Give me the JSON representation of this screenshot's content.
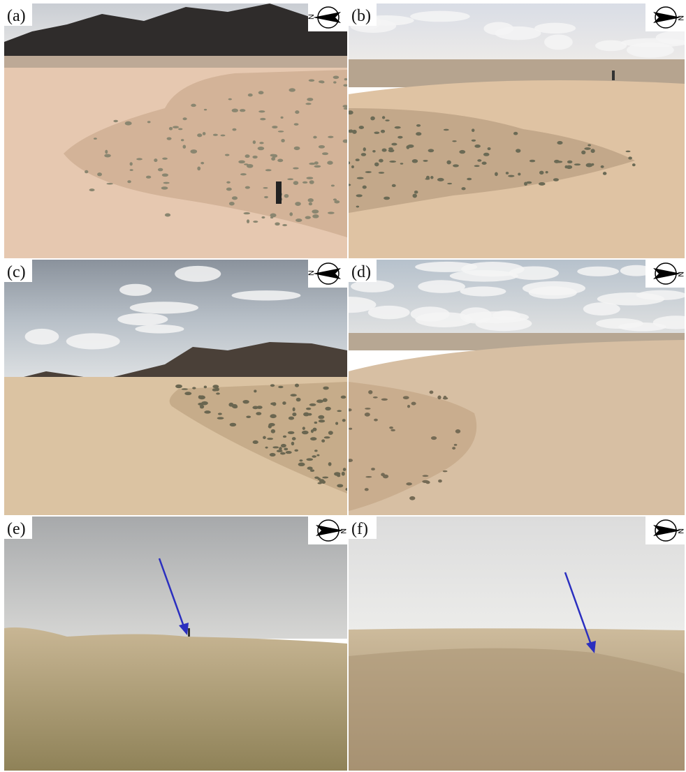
{
  "panels": [
    {
      "label": "(a)",
      "north": "N"
    },
    {
      "label": "(b)",
      "north": "N"
    },
    {
      "label": "(c)",
      "north": "N"
    },
    {
      "label": "(d)",
      "north": "N"
    },
    {
      "label": "(e)",
      "north": "N"
    },
    {
      "label": "(f)",
      "north": "N"
    }
  ]
}
